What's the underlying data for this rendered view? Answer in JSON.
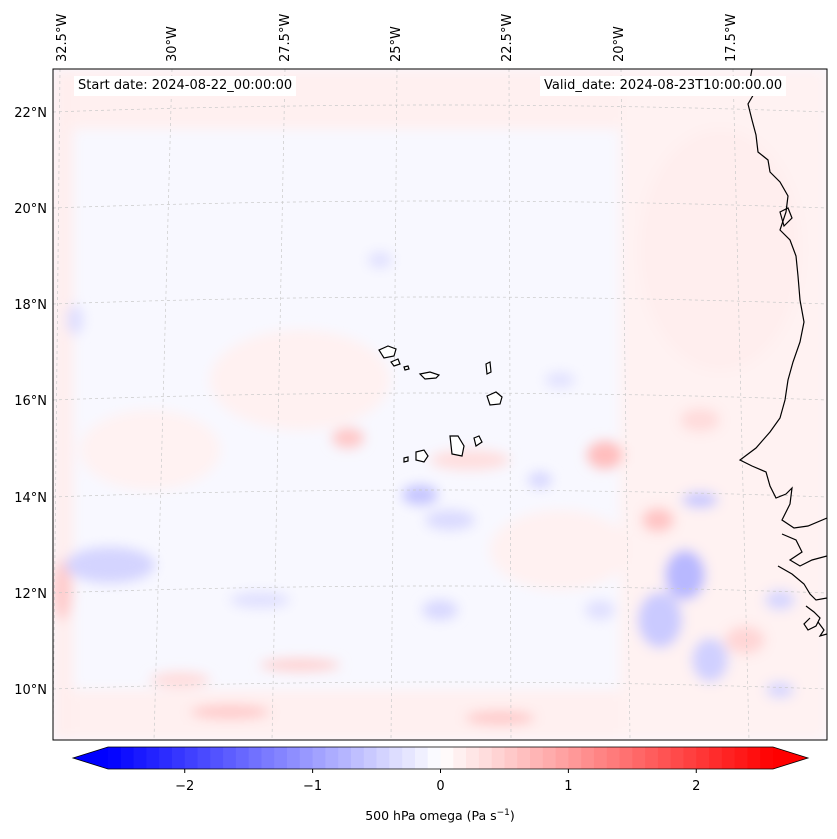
{
  "map": {
    "start_date": "Start date: 2024-08-22_00:00:00",
    "valid_date": "Valid_date: 2024-08-23T10:00:00.00",
    "lon_labels": [
      "32.5°W",
      "30°W",
      "27.5°W",
      "25°W",
      "22.5°W",
      "20°W",
      "17.5°W"
    ],
    "lat_labels": [
      "22°N",
      "20°N",
      "18°N",
      "16°N",
      "14°N",
      "12°N",
      "10°N"
    ],
    "colorbar": {
      "title_prefix": "500 hPa omega (Pa s",
      "title_exp": "−1",
      "title_suffix": ")",
      "range": [
        -2.6,
        2.6
      ],
      "ticks": [
        "−2",
        "−1",
        "0",
        "1",
        "2"
      ],
      "tick_values": [
        -2,
        -1,
        0,
        1,
        2
      ],
      "negative_color": "#0000ff",
      "zero_color": "#ffffff",
      "positive_color": "#ff0000"
    }
  }
}
